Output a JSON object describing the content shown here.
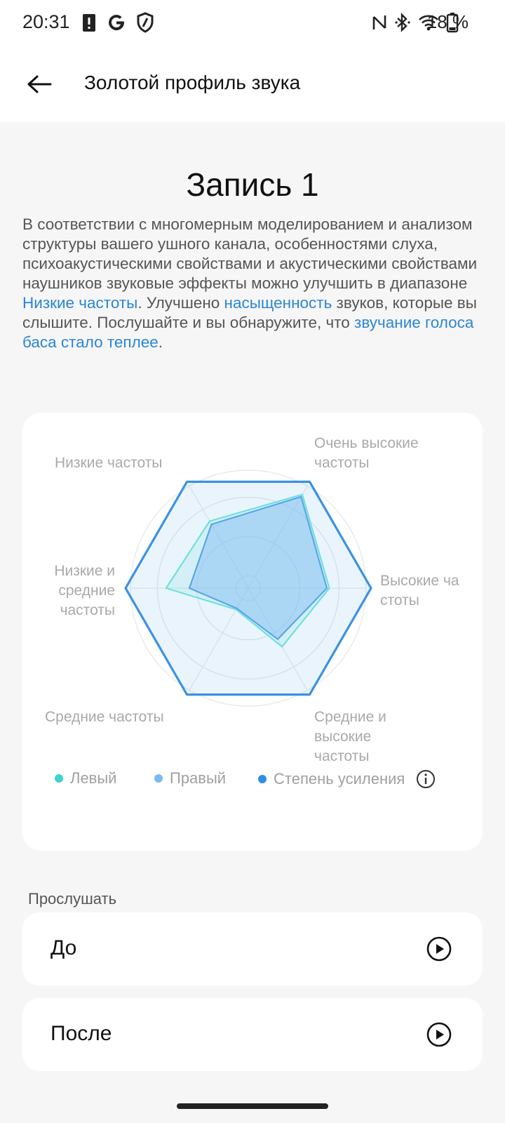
{
  "status_bar": {
    "time": "20:31",
    "battery": "18 %",
    "left_icons": [
      "alert-icon",
      "google-icon",
      "shield-icon"
    ],
    "right_icons": [
      "nfc-icon",
      "bluetooth-icon",
      "wifi-icon",
      "battery-icon"
    ]
  },
  "app_bar": {
    "back_icon": "arrow-left-icon",
    "title": "Золотой профиль звука"
  },
  "content": {
    "title": "Запись 1",
    "description": {
      "p1": "В соответствии с многомерным моделированием и анализом структуры вашего ушного канала, особенностями слуха, психоакустическими свойствами и акустическими свойствами наушников звуковые эффекты можно улучшить в диапазоне ",
      "h1": "Низкие частоты",
      "p2": ". Улучшено ",
      "h2": "насыщенность",
      "p3": " звуков, которые вы слышите. Послушайте и вы обнаружите, что ",
      "h3": "звучание голоса баса стало теплее",
      "p4": "."
    }
  },
  "chart_data": {
    "type": "radar",
    "axes": [
      "Очень высокие частоты",
      "Высокие частоты",
      "Средние и высокие частоты",
      "Средние частоты",
      "Низкие и средние частоты",
      "Низкие частоты"
    ],
    "axis_labels": {
      "very_high": [
        "Очень высокие",
        "частоты"
      ],
      "high": [
        "Высокие ча",
        "стоты"
      ],
      "mid_high": [
        "Средние и",
        "высокие",
        "частоты"
      ],
      "mid": [
        "Средние частоты"
      ],
      "low_mid": [
        "Низкие и",
        "средние",
        "частоты"
      ],
      "low": [
        "Низкие частоты"
      ]
    },
    "range": [
      0,
      1
    ],
    "grid": true,
    "series": [
      {
        "name": "Левый",
        "color": "#3cd3d0",
        "values": [
          0.88,
          0.66,
          0.55,
          0.2,
          0.67,
          0.63
        ]
      },
      {
        "name": "Правый",
        "color": "#7cb9f2",
        "values": [
          0.86,
          0.64,
          0.48,
          0.19,
          0.48,
          0.6
        ]
      },
      {
        "name": "Степень усиления",
        "color": "#2f8fe6",
        "values": [
          1.0,
          1.0,
          1.0,
          1.0,
          1.0,
          1.0
        ]
      }
    ],
    "legend_position": "bottom",
    "info_icon": "info-icon"
  },
  "listen": {
    "section_title": "Прослушать",
    "items": [
      {
        "label": "До",
        "icon": "play-icon"
      },
      {
        "label": "После",
        "icon": "play-icon"
      }
    ]
  }
}
